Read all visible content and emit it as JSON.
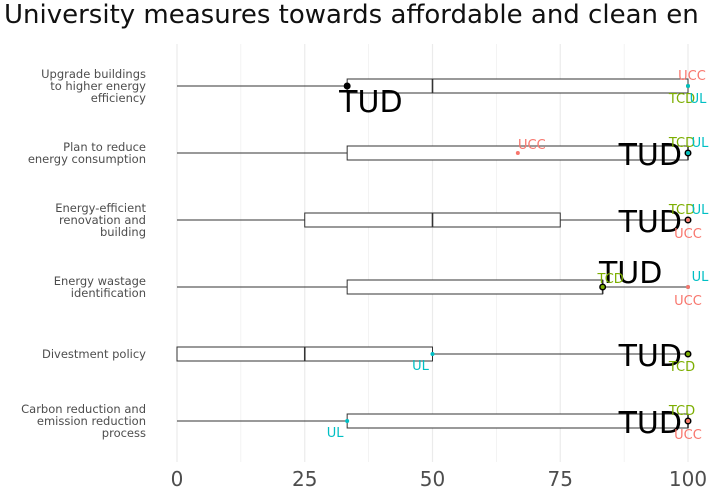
{
  "chart_data": {
    "type": "boxplot",
    "title": "University measures towards affordable and clean en",
    "xlabel": "",
    "ylabel": "",
    "xlim": [
      -3,
      103
    ],
    "x_ticks": [
      0,
      25,
      50,
      75,
      100
    ],
    "x_tick_labels": [
      "0",
      "25",
      "50",
      "75",
      "100"
    ],
    "grid": true,
    "colors": {
      "box": "#333333",
      "TUD": "#000000",
      "UCC": "#F8766D",
      "TCD": "#7CAE00",
      "UL": "#00BFC4",
      "grid": "#ebebeb"
    },
    "categories": [
      {
        "label_lines": [
          "Upgrade buildings",
          "to higher energy",
          "efficiency"
        ],
        "whisker_low": 0,
        "q1": 33.3,
        "median": 50,
        "q3": 100,
        "whisker_high": 100,
        "points": [
          {
            "inst": "TUD",
            "value": 33.3
          },
          {
            "inst": "UCC",
            "value": 100
          },
          {
            "inst": "TCD",
            "value": 100
          },
          {
            "inst": "UL",
            "value": 100
          }
        ]
      },
      {
        "label_lines": [
          "Plan to reduce",
          "energy consumption"
        ],
        "whisker_low": 0,
        "q1": 33.3,
        "median": 100,
        "q3": 100,
        "whisker_high": 100,
        "points": [
          {
            "inst": "UCC",
            "value": 66.7
          },
          {
            "inst": "TUD",
            "value": 100
          },
          {
            "inst": "TCD",
            "value": 100
          },
          {
            "inst": "UL",
            "value": 100
          }
        ]
      },
      {
        "label_lines": [
          "Energy-efficient",
          "renovation and",
          "building"
        ],
        "whisker_low": 0,
        "q1": 25,
        "median": 50,
        "q3": 75,
        "whisker_high": 100,
        "points": [
          {
            "inst": "TUD",
            "value": 100
          },
          {
            "inst": "TCD",
            "value": 100
          },
          {
            "inst": "UL",
            "value": 100
          },
          {
            "inst": "UCC",
            "value": 100
          }
        ]
      },
      {
        "label_lines": [
          "Energy wastage",
          "identification"
        ],
        "whisker_low": 0,
        "q1": 33.3,
        "median": 83.3,
        "q3": 83.3,
        "whisker_high": 100,
        "points": [
          {
            "inst": "TUD",
            "value": 83.3
          },
          {
            "inst": "TCD",
            "value": 83.3
          },
          {
            "inst": "UL",
            "value": 100
          },
          {
            "inst": "UCC",
            "value": 100
          }
        ]
      },
      {
        "label_lines": [
          "Divestment policy"
        ],
        "whisker_low": 0,
        "q1": 0,
        "median": 25,
        "q3": 50,
        "whisker_high": 100,
        "points": [
          {
            "inst": "UL",
            "value": 50
          },
          {
            "inst": "TUD",
            "value": 100
          },
          {
            "inst": "TCD",
            "value": 100
          }
        ]
      },
      {
        "label_lines": [
          "Carbon reduction and",
          "emission reduction",
          "process"
        ],
        "whisker_low": 0,
        "q1": 33.3,
        "median": 100,
        "q3": 100,
        "whisker_high": 100,
        "points": [
          {
            "inst": "UL",
            "value": 33.3
          },
          {
            "inst": "TUD",
            "value": 100
          },
          {
            "inst": "TCD",
            "value": 100
          },
          {
            "inst": "UCC",
            "value": 100
          }
        ]
      }
    ]
  }
}
